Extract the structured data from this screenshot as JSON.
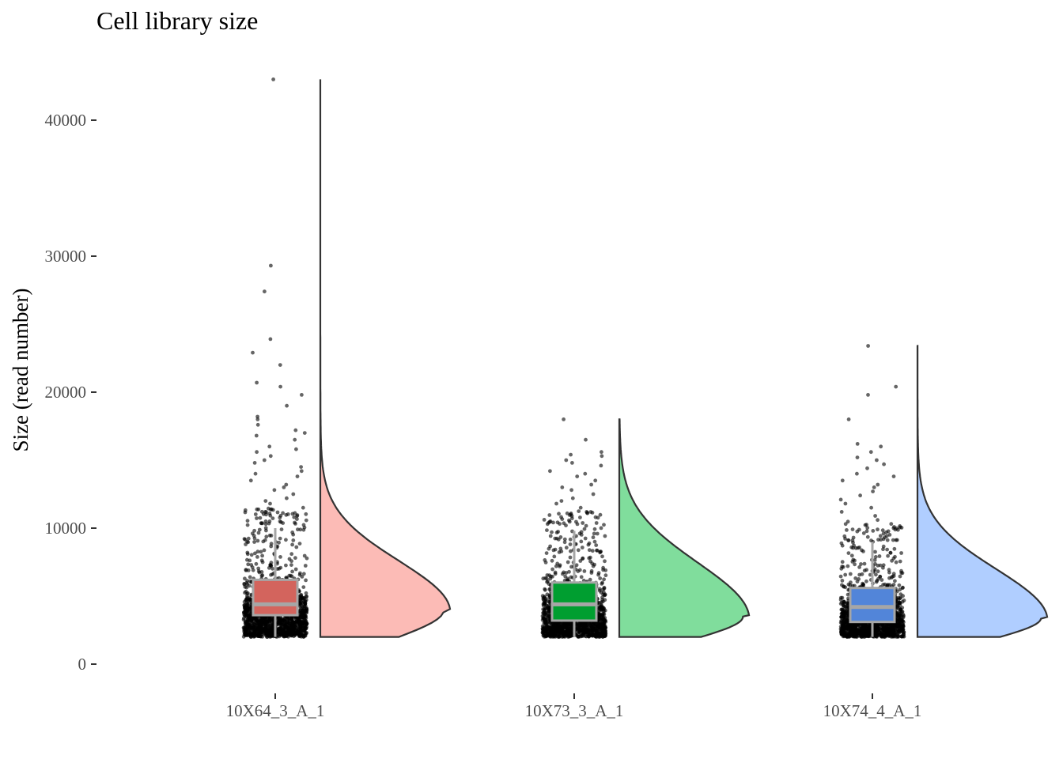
{
  "chart_data": {
    "type": "raincloud",
    "title": "Cell library size",
    "xlabel": "",
    "ylabel": "Size (read number)",
    "ylim": [
      0,
      44000
    ],
    "yticks": [
      0,
      10000,
      20000,
      30000,
      40000
    ],
    "ytick_labels": [
      "0",
      "10000",
      "20000",
      "30000",
      "40000"
    ],
    "grid": false,
    "legend": "none",
    "categories": [
      "10X64_3_A_1",
      "10X73_3_A_1",
      "10X74_4_A_1"
    ],
    "series": [
      {
        "category": "10X64_3_A_1",
        "color": "#F8766D",
        "box": {
          "q1": 3600,
          "median": 4400,
          "q3": 6200,
          "whisker_low": 2000,
          "whisker_high": 10000
        },
        "min": 2000,
        "max": 43000,
        "density_mode": 4000,
        "outliers": [
          43000,
          29300,
          27400,
          23900,
          22900,
          22000,
          20700,
          20400,
          19800,
          19000,
          18200,
          18000,
          17600,
          17200,
          17000,
          16800,
          16500,
          16000,
          15800,
          15600,
          15300,
          15000,
          14800,
          14500,
          14200,
          14000,
          13800,
          13500,
          13200,
          13000,
          12800,
          12500,
          12200,
          12000,
          11800,
          11500,
          11200,
          11000,
          10800,
          10500,
          10300
        ]
      },
      {
        "category": "10X73_3_A_1",
        "color": "#00BA38",
        "box": {
          "q1": 3200,
          "median": 4400,
          "q3": 6000,
          "whisker_low": 2000,
          "whisker_high": 9800
        },
        "min": 2000,
        "max": 18000,
        "density_mode": 3500,
        "outliers": [
          18000,
          16500,
          15600,
          15400,
          15300,
          15000,
          14800,
          14600,
          14200,
          14000,
          13800,
          13500,
          13200,
          13000,
          12800,
          12500,
          12200,
          12000,
          11800,
          11500,
          11200,
          11000,
          10800,
          10500,
          10200
        ]
      },
      {
        "category": "10X74_4_A_1",
        "color": "#619CFF",
        "box": {
          "q1": 3100,
          "median": 4200,
          "q3": 5600,
          "whisker_low": 2000,
          "whisker_high": 9000
        },
        "min": 2000,
        "max": 23400,
        "density_mode": 3400,
        "outliers": [
          23400,
          20400,
          19800,
          18000,
          16200,
          16000,
          15600,
          15200,
          15000,
          14700,
          14400,
          14000,
          13800,
          13500,
          13200,
          13000,
          12700,
          12400,
          12100,
          11800,
          11500,
          11200,
          10900,
          10600,
          10300,
          10000,
          9800,
          9600
        ]
      }
    ]
  }
}
